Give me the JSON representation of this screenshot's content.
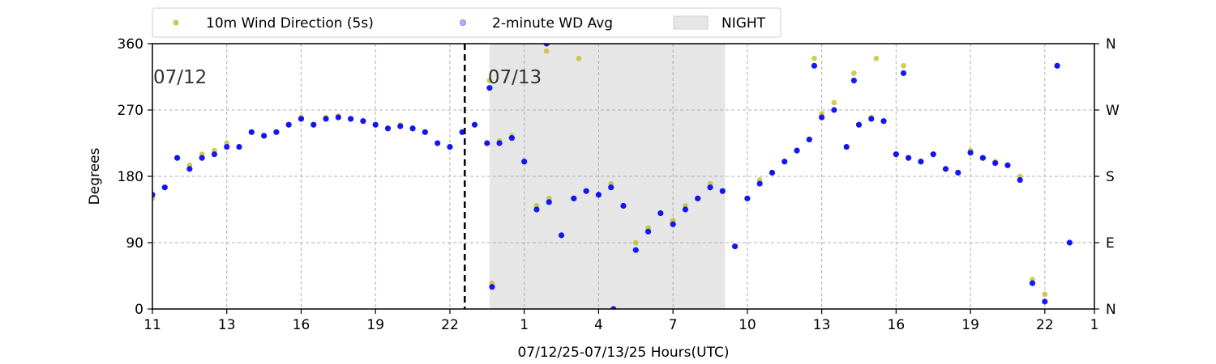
{
  "chart_data": {
    "type": "scatter",
    "xlabel": "07/12/25-07/13/25  Hours(UTC)",
    "ylabel": "Degrees",
    "ylim": [
      0,
      360
    ],
    "xlim": [
      11,
      49
    ],
    "x_ticks": [
      11,
      14,
      17,
      20,
      23,
      26,
      29,
      32,
      35,
      38,
      41,
      44,
      47,
      49
    ],
    "x_tick_labels": [
      "11",
      "13",
      "16",
      "19",
      "22",
      "1",
      "4",
      "7",
      "10",
      "13",
      "16",
      "19",
      "22",
      "1"
    ],
    "y_ticks": [
      0,
      90,
      180,
      270,
      360
    ],
    "y_tick_labels": [
      "0",
      "90",
      "180",
      "270",
      "360"
    ],
    "y2_tick_labels": [
      "N",
      "E",
      "S",
      "W",
      "N"
    ],
    "grid": true,
    "legend_placement": "top",
    "night_shading": {
      "label": "NIGHT",
      "x": [
        24.6,
        34.1
      ],
      "color": "#e6e6e6"
    },
    "day_boundary_x": 23.6,
    "date_annotations": [
      {
        "text": "07/12",
        "x": 11,
        "y": 324
      },
      {
        "text": "07/13",
        "x": 24.5,
        "y": 324
      }
    ],
    "series": [
      {
        "name": "10m Wind Direction (5s)",
        "color": "#bcbd22",
        "points": [
          [
            11,
            150
          ],
          [
            11.5,
            165
          ],
          [
            12,
            205
          ],
          [
            12.5,
            195
          ],
          [
            13,
            210
          ],
          [
            13.5,
            215
          ],
          [
            14,
            225
          ],
          [
            14.5,
            220
          ],
          [
            15,
            240
          ],
          [
            15.5,
            235
          ],
          [
            16,
            240
          ],
          [
            16.5,
            250
          ],
          [
            17,
            260
          ],
          [
            17.5,
            250
          ],
          [
            18,
            260
          ],
          [
            18.5,
            262
          ],
          [
            19,
            258
          ],
          [
            19.5,
            255
          ],
          [
            20,
            250
          ],
          [
            20.5,
            245
          ],
          [
            21,
            250
          ],
          [
            21.5,
            245
          ],
          [
            22,
            240
          ],
          [
            22.5,
            225
          ],
          [
            23,
            220
          ],
          [
            23.5,
            240
          ],
          [
            24,
            250
          ],
          [
            24.5,
            225
          ],
          [
            25,
            228
          ],
          [
            25.5,
            235
          ],
          [
            26,
            200
          ],
          [
            26.5,
            140
          ],
          [
            27,
            150
          ],
          [
            27.5,
            100
          ],
          [
            28,
            150
          ],
          [
            28.5,
            160
          ],
          [
            29,
            155
          ],
          [
            29.5,
            170
          ],
          [
            30,
            140
          ],
          [
            30.5,
            90
          ],
          [
            31,
            110
          ],
          [
            31.5,
            130
          ],
          [
            32,
            120
          ],
          [
            32.5,
            140
          ],
          [
            33,
            150
          ],
          [
            33.5,
            170
          ],
          [
            34,
            160
          ],
          [
            34.5,
            85
          ],
          [
            35,
            150
          ],
          [
            35.5,
            175
          ],
          [
            36,
            185
          ],
          [
            36.5,
            200
          ],
          [
            37,
            215
          ],
          [
            37.5,
            230
          ],
          [
            38,
            265
          ],
          [
            38.5,
            280
          ],
          [
            39,
            220
          ],
          [
            39.5,
            250
          ],
          [
            40,
            260
          ],
          [
            40.5,
            255
          ],
          [
            41,
            210
          ],
          [
            41.5,
            205
          ],
          [
            42,
            200
          ],
          [
            42.5,
            210
          ],
          [
            43,
            190
          ],
          [
            43.5,
            185
          ],
          [
            44,
            215
          ],
          [
            44.5,
            205
          ],
          [
            45,
            200
          ],
          [
            45.5,
            195
          ],
          [
            46,
            180
          ],
          [
            46.5,
            40
          ],
          [
            47,
            20
          ],
          [
            47.5,
            330
          ],
          [
            48,
            90
          ],
          [
            24.6,
            310
          ],
          [
            24.7,
            35
          ],
          [
            37.7,
            340
          ],
          [
            39.3,
            320
          ],
          [
            40.2,
            340
          ],
          [
            41.3,
            330
          ],
          [
            26.9,
            350
          ],
          [
            28.2,
            340
          ]
        ]
      },
      {
        "name": "2-minute WD Avg",
        "color": "#0000ff",
        "points": [
          [
            11,
            155
          ],
          [
            11.5,
            165
          ],
          [
            12,
            205
          ],
          [
            12.5,
            190
          ],
          [
            13,
            205
          ],
          [
            13.5,
            210
          ],
          [
            14,
            220
          ],
          [
            14.5,
            220
          ],
          [
            15,
            240
          ],
          [
            15.5,
            235
          ],
          [
            16,
            240
          ],
          [
            16.5,
            250
          ],
          [
            17,
            258
          ],
          [
            17.5,
            250
          ],
          [
            18,
            258
          ],
          [
            18.5,
            260
          ],
          [
            19,
            258
          ],
          [
            19.5,
            255
          ],
          [
            20,
            250
          ],
          [
            20.5,
            245
          ],
          [
            21,
            248
          ],
          [
            21.5,
            245
          ],
          [
            22,
            240
          ],
          [
            22.5,
            225
          ],
          [
            23,
            220
          ],
          [
            23.5,
            240
          ],
          [
            24,
            250
          ],
          [
            24.5,
            225
          ],
          [
            25,
            225
          ],
          [
            25.5,
            232
          ],
          [
            26,
            200
          ],
          [
            26.5,
            135
          ],
          [
            27,
            145
          ],
          [
            27.5,
            100
          ],
          [
            28,
            150
          ],
          [
            28.5,
            160
          ],
          [
            29,
            155
          ],
          [
            29.5,
            165
          ],
          [
            30,
            140
          ],
          [
            30.5,
            80
          ],
          [
            31,
            105
          ],
          [
            31.5,
            130
          ],
          [
            32,
            115
          ],
          [
            32.5,
            135
          ],
          [
            33,
            150
          ],
          [
            33.5,
            165
          ],
          [
            34,
            160
          ],
          [
            34.5,
            85
          ],
          [
            35,
            150
          ],
          [
            35.5,
            170
          ],
          [
            36,
            185
          ],
          [
            36.5,
            200
          ],
          [
            37,
            215
          ],
          [
            37.5,
            230
          ],
          [
            38,
            260
          ],
          [
            38.5,
            270
          ],
          [
            39,
            220
          ],
          [
            39.5,
            250
          ],
          [
            40,
            258
          ],
          [
            40.5,
            255
          ],
          [
            41,
            210
          ],
          [
            41.5,
            205
          ],
          [
            42,
            200
          ],
          [
            42.5,
            210
          ],
          [
            43,
            190
          ],
          [
            43.5,
            185
          ],
          [
            44,
            212
          ],
          [
            44.5,
            205
          ],
          [
            45,
            198
          ],
          [
            45.5,
            195
          ],
          [
            46,
            175
          ],
          [
            46.5,
            35
          ],
          [
            47,
            10
          ],
          [
            47.5,
            330
          ],
          [
            48,
            90
          ],
          [
            24.6,
            300
          ],
          [
            24.7,
            30
          ],
          [
            37.7,
            330
          ],
          [
            39.3,
            310
          ],
          [
            41.3,
            320
          ],
          [
            26.9,
            360
          ],
          [
            29.6,
            0
          ]
        ]
      }
    ]
  }
}
